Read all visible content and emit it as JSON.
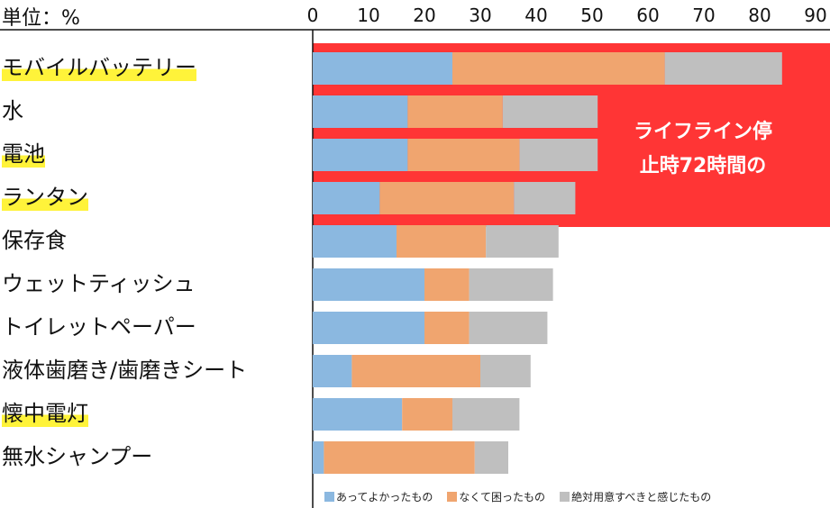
{
  "chart_data": {
    "type": "bar",
    "orientation": "horizontal",
    "stacked": true,
    "unit_label": "単位：%",
    "xlim": [
      0,
      90
    ],
    "x_ticks": [
      "0",
      "10",
      "20",
      "30",
      "40",
      "50",
      "60",
      "70",
      "80",
      "90"
    ],
    "categories": [
      "モバイルバッテリー",
      "水",
      "電池",
      "ランタン",
      "保存食",
      "ウェットティッシュ",
      "トイレットペーパー",
      "液体歯磨き/歯磨きシート",
      "懐中電灯",
      "無水シャンプー"
    ],
    "highlighted_categories": [
      "モバイルバッテリー",
      "電池",
      "ランタン",
      "懐中電灯"
    ],
    "series": [
      {
        "name": "あってよかったもの",
        "color": "#8bb8e0",
        "values": [
          25,
          17,
          17,
          12,
          15,
          20,
          20,
          7,
          16,
          2
        ]
      },
      {
        "name": "なくて困ったもの",
        "color": "#f0a56f",
        "values": [
          38,
          17,
          20,
          24,
          16,
          8,
          8,
          23,
          9,
          27
        ]
      },
      {
        "name": "絶対用意すべきと感じたもの",
        "color": "#bfbfbf",
        "values": [
          21,
          17,
          14,
          11,
          13,
          15,
          14,
          9,
          12,
          6
        ]
      }
    ],
    "annotation": {
      "text_lines": [
        "ライフライン停",
        "止時72時間の"
      ],
      "color": "#ff3535",
      "covers_categories": [
        "モバイルバッテリー",
        "水",
        "電池",
        "ランタン"
      ]
    },
    "legend": "bottom",
    "grid": false
  }
}
